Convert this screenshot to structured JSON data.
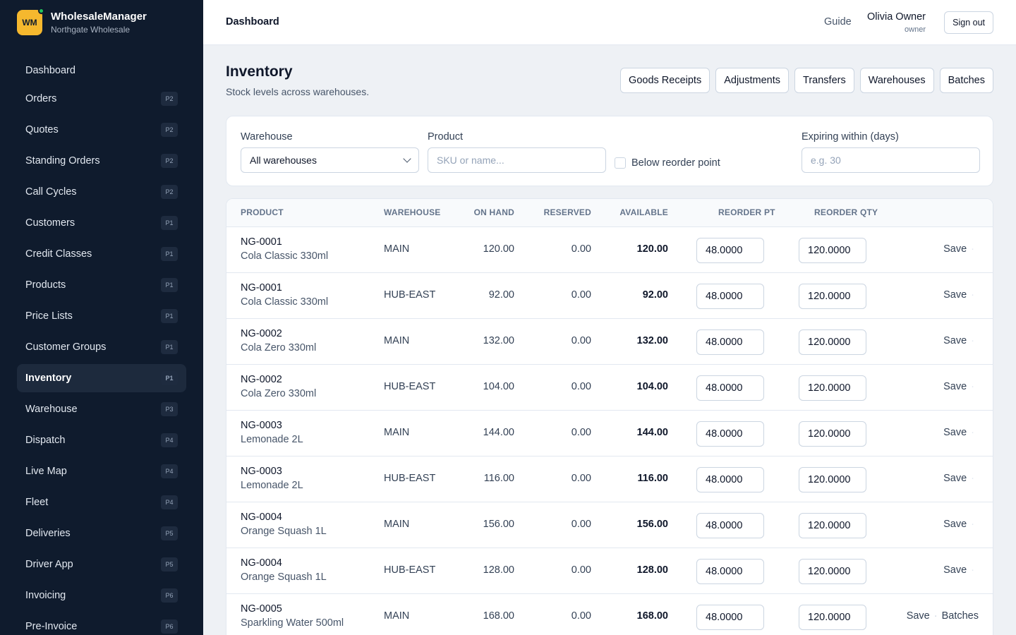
{
  "brand": {
    "logo": "WM",
    "name": "WholesaleManager",
    "subtitle": "Northgate Wholesale"
  },
  "sidebar": {
    "items": [
      {
        "label": "Dashboard",
        "badge": ""
      },
      {
        "label": "Orders",
        "badge": "P2"
      },
      {
        "label": "Quotes",
        "badge": "P2"
      },
      {
        "label": "Standing Orders",
        "badge": "P2"
      },
      {
        "label": "Call Cycles",
        "badge": "P2"
      },
      {
        "label": "Customers",
        "badge": "P1"
      },
      {
        "label": "Credit Classes",
        "badge": "P1"
      },
      {
        "label": "Products",
        "badge": "P1"
      },
      {
        "label": "Price Lists",
        "badge": "P1"
      },
      {
        "label": "Customer Groups",
        "badge": "P1"
      },
      {
        "label": "Inventory",
        "badge": "P1"
      },
      {
        "label": "Warehouse",
        "badge": "P3"
      },
      {
        "label": "Dispatch",
        "badge": "P4"
      },
      {
        "label": "Live Map",
        "badge": "P4"
      },
      {
        "label": "Fleet",
        "badge": "P4"
      },
      {
        "label": "Deliveries",
        "badge": "P5"
      },
      {
        "label": "Driver App",
        "badge": "P5"
      },
      {
        "label": "Invoicing",
        "badge": "P6"
      },
      {
        "label": "Pre-Invoice",
        "badge": "P6"
      }
    ]
  },
  "header": {
    "title": "Dashboard",
    "guide": "Guide",
    "user_name": "Olivia Owner",
    "user_role": "owner",
    "signout": "Sign out"
  },
  "page": {
    "title": "Inventory",
    "subtitle": "Stock levels across warehouses.",
    "actions": [
      "Goods Receipts",
      "Adjustments",
      "Transfers",
      "Warehouses",
      "Batches"
    ]
  },
  "filters": {
    "warehouse_label": "Warehouse",
    "warehouse_value": "All warehouses",
    "product_label": "Product",
    "product_placeholder": "SKU or name...",
    "below_reorder_label": "Below reorder point",
    "expiring_label": "Expiring within (days)",
    "expiring_placeholder": "e.g. 30"
  },
  "table": {
    "headers": [
      "PRODUCT",
      "WAREHOUSE",
      "ON HAND",
      "RESERVED",
      "AVAILABLE",
      "REORDER PT",
      "REORDER QTY"
    ],
    "save_label": "Save",
    "batches_label": "Batches",
    "rows": [
      {
        "sku": "NG-0001",
        "name": "Cola Classic 330ml",
        "warehouse": "MAIN",
        "on_hand": "120.00",
        "reserved": "0.00",
        "available": "120.00",
        "reorder_pt": "48.0000",
        "reorder_qty": "120.0000"
      },
      {
        "sku": "NG-0001",
        "name": "Cola Classic 330ml",
        "warehouse": "HUB-EAST",
        "on_hand": "92.00",
        "reserved": "0.00",
        "available": "92.00",
        "reorder_pt": "48.0000",
        "reorder_qty": "120.0000"
      },
      {
        "sku": "NG-0002",
        "name": "Cola Zero 330ml",
        "warehouse": "MAIN",
        "on_hand": "132.00",
        "reserved": "0.00",
        "available": "132.00",
        "reorder_pt": "48.0000",
        "reorder_qty": "120.0000"
      },
      {
        "sku": "NG-0002",
        "name": "Cola Zero 330ml",
        "warehouse": "HUB-EAST",
        "on_hand": "104.00",
        "reserved": "0.00",
        "available": "104.00",
        "reorder_pt": "48.0000",
        "reorder_qty": "120.0000"
      },
      {
        "sku": "NG-0003",
        "name": "Lemonade 2L",
        "warehouse": "MAIN",
        "on_hand": "144.00",
        "reserved": "0.00",
        "available": "144.00",
        "reorder_pt": "48.0000",
        "reorder_qty": "120.0000"
      },
      {
        "sku": "NG-0003",
        "name": "Lemonade 2L",
        "warehouse": "HUB-EAST",
        "on_hand": "116.00",
        "reserved": "0.00",
        "available": "116.00",
        "reorder_pt": "48.0000",
        "reorder_qty": "120.0000"
      },
      {
        "sku": "NG-0004",
        "name": "Orange Squash 1L",
        "warehouse": "MAIN",
        "on_hand": "156.00",
        "reserved": "0.00",
        "available": "156.00",
        "reorder_pt": "48.0000",
        "reorder_qty": "120.0000"
      },
      {
        "sku": "NG-0004",
        "name": "Orange Squash 1L",
        "warehouse": "HUB-EAST",
        "on_hand": "128.00",
        "reserved": "0.00",
        "available": "128.00",
        "reorder_pt": "48.0000",
        "reorder_qty": "120.0000"
      },
      {
        "sku": "NG-0005",
        "name": "Sparkling Water 500ml",
        "warehouse": "MAIN",
        "on_hand": "168.00",
        "reserved": "0.00",
        "available": "168.00",
        "reorder_pt": "48.0000",
        "reorder_qty": "120.0000",
        "has_batches": true
      }
    ]
  },
  "colors": {
    "sidebar_bg": "#0f1b2d",
    "accent": "#f5b82e",
    "status_dot": "#22c55e"
  },
  "icons": {
    "dropdown": "chevron-down-icon"
  }
}
